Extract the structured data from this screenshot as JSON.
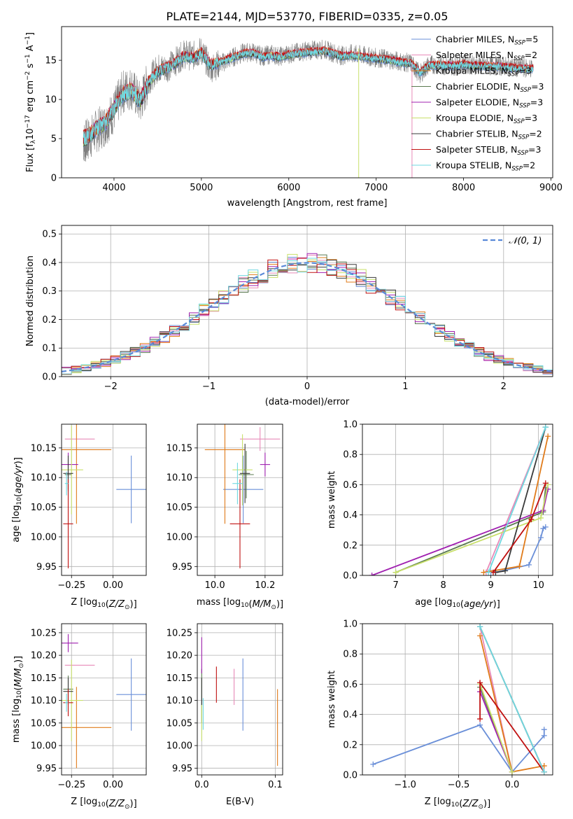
{
  "figure_title": "PLATE=2144, MJD=53770, FIBERID=0335, z=0.05",
  "colors": {
    "Chabrier MILES": "#6a8fd8",
    "Salpeter MILES": "#e88ab8",
    "Kroupa MILES": "#e07b1a",
    "Chabrier ELODIE": "#5a7a50",
    "Salpeter ELODIE": "#a020b0",
    "Kroupa ELODIE": "#c8e06a",
    "Chabrier STELIB": "#3a3a3a",
    "Salpeter STELIB": "#c01010",
    "Kroupa STELIB": "#70d8e0",
    "data": "#7f7f7f",
    "normal": "#5a8ad8"
  },
  "chart_data": [
    {
      "id": "spectrum",
      "type": "line",
      "title": "PLATE=2144, MJD=53770, FIBERID=0335, z=0.05",
      "xlabel": "wavelength [Angstrom, rest frame]",
      "ylabel_parts": [
        "Flux [f",
        "λ",
        "10",
        "−17",
        " erg cm",
        "−2",
        " s",
        "−1",
        " A",
        "−1",
        "]"
      ],
      "xlim": [
        3400,
        9020
      ],
      "ylim": [
        0,
        19.3
      ],
      "xticks": [
        4000,
        5000,
        6000,
        7000,
        8000,
        9000
      ],
      "yticks": [
        0,
        5,
        10,
        15
      ],
      "x": [
        3650,
        3700,
        3800,
        3900,
        4000,
        4100,
        4200,
        4300,
        4400,
        4500,
        4600,
        4700,
        4800,
        4900,
        5000,
        5100,
        5200,
        5300,
        5400,
        5500,
        5600,
        5700,
        5800,
        5900,
        6000,
        6100,
        6200,
        6300,
        6400,
        6500,
        6600,
        6700,
        6800,
        6900,
        7000,
        7100,
        7200,
        7300,
        7400,
        7500,
        7600,
        7700,
        7800,
        7900,
        8000,
        8100,
        8200,
        8300,
        8400,
        8500,
        8600,
        8700,
        8800
      ],
      "data_flux": [
        4.5,
        4.8,
        6.0,
        6.8,
        8.5,
        11.0,
        11.5,
        9.5,
        12.5,
        14.0,
        14.0,
        14.8,
        15.8,
        15.5,
        16.2,
        14.0,
        14.5,
        15.0,
        15.6,
        16.0,
        16.0,
        15.5,
        15.8,
        15.5,
        15.8,
        16.0,
        16.2,
        16.3,
        16.4,
        16.0,
        15.6,
        15.8,
        15.7,
        15.5,
        15.3,
        15.2,
        15.0,
        14.8,
        14.6,
        13.2,
        14.4,
        14.5,
        14.3,
        14.3,
        14.6,
        14.4,
        14.4,
        14.3,
        14.3,
        14.2,
        14.1,
        14.0,
        14.0
      ],
      "model_flux": [
        5.0,
        5.2,
        6.3,
        7.0,
        8.8,
        10.6,
        11.2,
        9.8,
        12.2,
        13.6,
        14.0,
        14.6,
        15.5,
        15.3,
        15.9,
        14.4,
        14.7,
        15.1,
        15.5,
        15.9,
        15.9,
        15.4,
        15.6,
        15.4,
        15.7,
        15.9,
        16.0,
        16.1,
        16.2,
        15.9,
        15.5,
        15.6,
        15.5,
        15.4,
        15.2,
        15.1,
        14.9,
        14.7,
        14.6,
        13.4,
        14.3,
        14.4,
        14.3,
        14.3,
        14.5,
        14.3,
        14.3,
        14.2,
        14.2,
        14.1,
        14.0,
        13.9,
        13.9
      ],
      "series": [
        {
          "name": "Chabrier MILES",
          "ssp": "5",
          "offset": -0.2
        },
        {
          "name": "Salpeter MILES",
          "ssp": "2",
          "offset": 0.15
        },
        {
          "name": "Kroupa MILES",
          "ssp": "3",
          "offset": 0.1
        },
        {
          "name": "Chabrier ELODIE",
          "ssp": "3",
          "offset": -0.1
        },
        {
          "name": "Salpeter ELODIE",
          "ssp": "3",
          "offset": 0.05
        },
        {
          "name": "Kroupa ELODIE",
          "ssp": "3",
          "offset": 0.0
        },
        {
          "name": "Chabrier STELIB",
          "ssp": "2",
          "offset": -0.05
        },
        {
          "name": "Salpeter STELIB",
          "ssp": "3",
          "offset": 0.2
        },
        {
          "name": "Kroupa STELIB",
          "ssp": "2",
          "offset": 0.0
        }
      ],
      "legend_placement": "right",
      "grid": false
    },
    {
      "id": "residuals",
      "type": "line",
      "xlabel": "(data-model)/error",
      "ylabel": "Normed distribution",
      "xlim": [
        -2.5,
        2.5
      ],
      "ylim": [
        0,
        0.53
      ],
      "xticks": [
        -2,
        -1,
        0,
        1,
        2
      ],
      "yticks": [
        0.0,
        0.1,
        0.2,
        0.3,
        0.4,
        0.5
      ],
      "bin_width": 0.1,
      "legend": "𝒩(0, 1)",
      "legend_placement": "top-right",
      "grid": true
    },
    {
      "id": "age-vs-Z",
      "type": "scatter",
      "xlabel": "Z [log10(Z/Z⊙)]",
      "ylabel": "age  [log10(age/yr)]",
      "xlim": [
        -0.31,
        0.2
      ],
      "ylim": [
        9.935,
        10.19
      ],
      "xticks": [
        -0.25,
        0.0
      ],
      "yticks": [
        9.95,
        10.0,
        10.05,
        10.1,
        10.15
      ],
      "points": [
        {
          "series": "Chabrier MILES",
          "x": 0.11,
          "xerr": 0.09,
          "y": 10.08,
          "yerr": 0.057
        },
        {
          "series": "Salpeter MILES",
          "x": -0.2,
          "xerr": 0.09,
          "y": 10.165,
          "yerr": 0.0
        },
        {
          "series": "Kroupa MILES",
          "x": -0.22,
          "xerr": 0.21,
          "y": 10.147,
          "yerr": 0.125
        },
        {
          "series": "Chabrier ELODIE",
          "x": -0.27,
          "xerr": 0.02,
          "y": 10.105,
          "yerr": 0.025
        },
        {
          "series": "Salpeter ELODIE",
          "x": -0.27,
          "xerr": 0.06,
          "y": 10.122,
          "yerr": 0.02
        },
        {
          "series": "Kroupa ELODIE",
          "x": -0.25,
          "xerr": 0.07,
          "y": 10.113,
          "yerr": 0.075
        },
        {
          "series": "Chabrier STELIB",
          "x": -0.27,
          "xerr": 0.03,
          "y": 10.107,
          "yerr": 0.03
        },
        {
          "series": "Salpeter STELIB",
          "x": -0.27,
          "xerr": 0.03,
          "y": 10.022,
          "yerr": 0.075
        },
        {
          "series": "Kroupa STELIB",
          "x": -0.28,
          "xerr": 0.01,
          "y": 10.09,
          "yerr": 0.02
        }
      ],
      "grid": true
    },
    {
      "id": "age-vs-mass",
      "type": "scatter",
      "xlabel": "mass [log10(M/M⊙)]",
      "ylabel": "",
      "xlim": [
        9.93,
        10.27
      ],
      "ylim": [
        9.935,
        10.19
      ],
      "xticks": [
        10.0,
        10.2
      ],
      "yticks": [
        9.95,
        10.0,
        10.05,
        10.1,
        10.15
      ],
      "points": [
        {
          "series": "Chabrier MILES",
          "x": 10.113,
          "xerr": 0.08,
          "y": 10.08,
          "yerr": 0.057
        },
        {
          "series": "Salpeter MILES",
          "x": 10.18,
          "xerr": 0.08,
          "y": 10.165,
          "yerr": 0.02
        },
        {
          "series": "Kroupa MILES",
          "x": 10.04,
          "xerr": 0.08,
          "y": 10.147,
          "yerr": 0.125
        },
        {
          "series": "Chabrier ELODIE",
          "x": 10.125,
          "xerr": 0.03,
          "y": 10.105,
          "yerr": 0.04
        },
        {
          "series": "Salpeter ELODIE",
          "x": 10.2,
          "xerr": 0.02,
          "y": 10.122,
          "yerr": 0.02
        },
        {
          "series": "Kroupa ELODIE",
          "x": 10.11,
          "xerr": 0.04,
          "y": 10.113,
          "yerr": 0.06
        },
        {
          "series": "Chabrier STELIB",
          "x": 10.12,
          "xerr": 0.02,
          "y": 10.107,
          "yerr": 0.05
        },
        {
          "series": "Salpeter STELIB",
          "x": 10.1,
          "xerr": 0.04,
          "y": 10.022,
          "yerr": 0.075
        },
        {
          "series": "Kroupa STELIB",
          "x": 10.09,
          "xerr": 0.02,
          "y": 10.09,
          "yerr": 0.035
        }
      ],
      "grid": true
    },
    {
      "id": "weight-vs-age",
      "type": "line",
      "xlabel": "age  [log10(age/yr)]",
      "ylabel": "mass weight",
      "xlim": [
        6.3,
        10.3
      ],
      "ylim": [
        0.0,
        1.0
      ],
      "xticks": [
        7,
        8,
        9,
        10
      ],
      "yticks": [
        0.0,
        0.2,
        0.4,
        0.6,
        0.8,
        1.0
      ],
      "series": [
        {
          "name": "Chabrier MILES",
          "x": [
            9.0,
            9.1,
            9.8,
            10.05,
            10.1,
            10.15
          ],
          "y": [
            0.02,
            0.02,
            0.07,
            0.25,
            0.31,
            0.32
          ]
        },
        {
          "name": "Salpeter MILES",
          "x": [
            8.9,
            10.15
          ],
          "y": [
            0.02,
            0.98
          ]
        },
        {
          "name": "Kroupa MILES",
          "x": [
            8.85,
            9.6,
            10.2
          ],
          "y": [
            0.02,
            0.06,
            0.92
          ]
        },
        {
          "name": "Chabrier ELODIE",
          "x": [
            7.0,
            10.1,
            10.15
          ],
          "y": [
            0.02,
            0.42,
            0.58
          ]
        },
        {
          "name": "Salpeter ELODIE",
          "x": [
            6.5,
            10.1,
            10.2
          ],
          "y": [
            0.0,
            0.43,
            0.57
          ]
        },
        {
          "name": "Kroupa ELODIE",
          "x": [
            7.0,
            10.05,
            10.2
          ],
          "y": [
            0.02,
            0.38,
            0.6
          ]
        },
        {
          "name": "Chabrier STELIB",
          "x": [
            9.1,
            9.3,
            10.15
          ],
          "y": [
            0.02,
            0.03,
            0.98
          ]
        },
        {
          "name": "Salpeter STELIB",
          "x": [
            9.05,
            9.85,
            10.15
          ],
          "y": [
            0.02,
            0.37,
            0.61
          ]
        },
        {
          "name": "Kroupa STELIB",
          "x": [
            8.95,
            10.15
          ],
          "y": [
            0.02,
            0.98
          ]
        }
      ],
      "grid": true
    },
    {
      "id": "mass-vs-Z",
      "type": "scatter",
      "xlabel": "Z [log10(Z/Z⊙)]",
      "ylabel": "mass [log10(M/M⊙)]",
      "xlim": [
        -0.31,
        0.2
      ],
      "ylim": [
        9.935,
        10.27
      ],
      "xticks": [
        -0.25,
        0.0
      ],
      "yticks": [
        9.95,
        10.0,
        10.05,
        10.1,
        10.15,
        10.2,
        10.25
      ],
      "points": [
        {
          "series": "Chabrier MILES",
          "x": 0.11,
          "xerr": 0.09,
          "y": 10.113,
          "yerr": 0.08
        },
        {
          "series": "Salpeter MILES",
          "x": -0.2,
          "xerr": 0.09,
          "y": 10.178,
          "yerr": 0.0
        },
        {
          "series": "Kroupa MILES",
          "x": -0.22,
          "xerr": 0.21,
          "y": 10.04,
          "yerr": 0.09
        },
        {
          "series": "Chabrier ELODIE",
          "x": -0.27,
          "xerr": 0.03,
          "y": 10.125,
          "yerr": 0.03
        },
        {
          "series": "Salpeter ELODIE",
          "x": -0.27,
          "xerr": 0.06,
          "y": 10.227,
          "yerr": 0.02
        },
        {
          "series": "Kroupa ELODIE",
          "x": -0.25,
          "xerr": 0.07,
          "y": 10.1,
          "yerr": 0.09
        },
        {
          "series": "Chabrier STELIB",
          "x": -0.27,
          "xerr": 0.03,
          "y": 10.12,
          "yerr": 0.03
        },
        {
          "series": "Salpeter STELIB",
          "x": -0.27,
          "xerr": 0.03,
          "y": 10.095,
          "yerr": 0.03
        },
        {
          "series": "Kroupa STELIB",
          "x": -0.28,
          "xerr": 0.01,
          "y": 10.095,
          "yerr": 0.02
        }
      ],
      "grid": true
    },
    {
      "id": "mass-vs-ebv",
      "type": "scatter",
      "xlabel": "E(B-V)",
      "ylabel": "",
      "xlim": [
        -0.006,
        0.11
      ],
      "ylim": [
        9.935,
        10.27
      ],
      "xticks": [
        0.0,
        0.1
      ],
      "yticks": [
        9.95,
        10.0,
        10.05,
        10.1,
        10.15,
        10.2,
        10.25
      ],
      "points": [
        {
          "series": "Chabrier MILES",
          "x": 0.056,
          "xerr": 0.0,
          "y": 10.113,
          "yerr": 0.08
        },
        {
          "series": "Salpeter MILES",
          "x": 0.044,
          "xerr": 0.0,
          "y": 10.13,
          "yerr": 0.04
        },
        {
          "series": "Kroupa MILES",
          "x": 0.103,
          "xerr": 0.0,
          "y": 10.04,
          "yerr": 0.085
        },
        {
          "series": "Chabrier ELODIE",
          "x": 0.0,
          "xerr": 0.0,
          "y": 10.11,
          "yerr": 0.06
        },
        {
          "series": "Salpeter ELODIE",
          "x": 0.0,
          "xerr": 0.0,
          "y": 10.2,
          "yerr": 0.04
        },
        {
          "series": "Kroupa ELODIE",
          "x": 0.0,
          "xerr": 0.0,
          "y": 10.05,
          "yerr": 0.04
        },
        {
          "series": "Chabrier STELIB",
          "x": 0.0,
          "xerr": 0.0,
          "y": 10.12,
          "yerr": 0.03
        },
        {
          "series": "Salpeter STELIB",
          "x": 0.02,
          "xerr": 0.0,
          "y": 10.135,
          "yerr": 0.04
        },
        {
          "series": "Kroupa STELIB",
          "x": 0.002,
          "xerr": 0.0,
          "y": 10.07,
          "yerr": 0.035
        }
      ],
      "grid": true
    },
    {
      "id": "weight-vs-Z",
      "type": "line",
      "xlabel": "Z [log10(Z/Z⊙)]",
      "ylabel": "mass weight",
      "xlim": [
        -1.4,
        0.38
      ],
      "ylim": [
        0.0,
        1.0
      ],
      "xticks": [
        -1.0,
        -0.5,
        0.0
      ],
      "yticks": [
        0.0,
        0.2,
        0.4,
        0.6,
        0.8,
        1.0
      ],
      "series": [
        {
          "name": "Chabrier MILES",
          "x": [
            -1.3,
            -0.3,
            0.0,
            0.3,
            0.3
          ],
          "y": [
            0.07,
            0.33,
            0.02,
            0.26,
            0.3
          ]
        },
        {
          "name": "Salpeter MILES",
          "x": [
            -0.3,
            0.0
          ],
          "y": [
            0.98,
            0.02
          ]
        },
        {
          "name": "Kroupa MILES",
          "x": [
            -0.3,
            0.0,
            0.3
          ],
          "y": [
            0.92,
            0.02,
            0.06
          ]
        },
        {
          "name": "Chabrier ELODIE",
          "x": [
            -0.3,
            0.0
          ],
          "y": [
            0.58,
            0.02
          ]
        },
        {
          "name": "Salpeter ELODIE",
          "x": [
            -0.3,
            0.0
          ],
          "y": [
            0.55,
            0.02
          ]
        },
        {
          "name": "Kroupa ELODIE",
          "x": [
            -0.3,
            0.0
          ],
          "y": [
            0.6,
            0.02
          ]
        },
        {
          "name": "Chabrier STELIB",
          "x": [
            -0.3,
            0.3
          ],
          "y": [
            0.98,
            0.02
          ]
        },
        {
          "name": "Salpeter STELIB",
          "x": [
            -0.3,
            -0.3,
            0.3
          ],
          "y": [
            0.37,
            0.61,
            0.02
          ]
        },
        {
          "name": "Kroupa STELIB",
          "x": [
            -0.3,
            0.3
          ],
          "y": [
            0.98,
            0.02
          ]
        }
      ],
      "grid": true
    }
  ]
}
